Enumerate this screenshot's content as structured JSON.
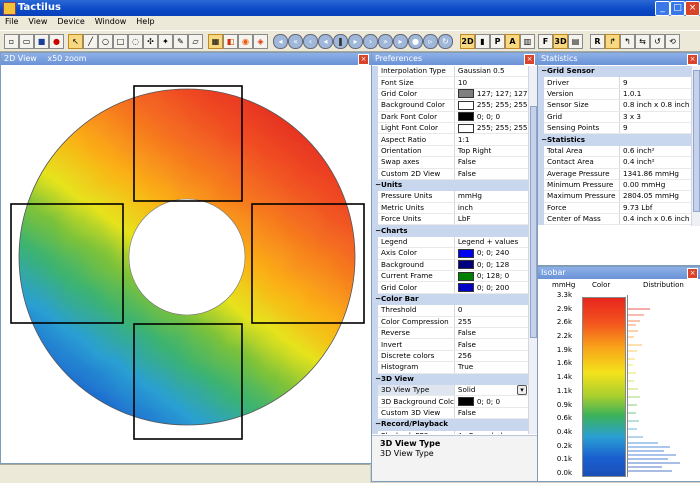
{
  "window": {
    "title": "Tactilus",
    "minimize": "_",
    "maximize": "□",
    "close": "×"
  },
  "menu": [
    "File",
    "View",
    "Device",
    "Window",
    "Help"
  ],
  "toolbar": {
    "btn_2d": "2D",
    "btn_3d": "3D",
    "btn_p": "P",
    "btn_a": "A",
    "btn_f": "F",
    "btn_r": "R"
  },
  "view2d": {
    "title": "2D View",
    "zoom": "x50 zoom"
  },
  "preferences": {
    "title": "Preferences",
    "rows": [
      {
        "name": "Interpolation Type",
        "value": "Gaussian 0.5"
      },
      {
        "name": "Font Size",
        "value": "10"
      },
      {
        "name": "Grid Color",
        "value": "127; 127; 127",
        "color": "#7f7f7f"
      },
      {
        "name": "Background Color",
        "value": "255; 255; 255",
        "color": "#ffffff"
      },
      {
        "name": "Dark Font Color",
        "value": "0; 0; 0",
        "color": "#000000"
      },
      {
        "name": "Light Font Color",
        "value": "255; 255; 255",
        "color": "#ffffff"
      },
      {
        "name": "Aspect Ratio",
        "value": "1:1"
      },
      {
        "name": "Orientation",
        "value": "Top Right"
      },
      {
        "name": "Swap axes",
        "value": "False"
      },
      {
        "name": "Custom 2D View",
        "value": "False"
      },
      {
        "category": "Units"
      },
      {
        "name": "Pressure Units",
        "value": "mmHg"
      },
      {
        "name": "Metric Units",
        "value": "inch"
      },
      {
        "name": "Force Units",
        "value": "LbF"
      },
      {
        "category": "Charts"
      },
      {
        "name": "Legend",
        "value": "Legend + values"
      },
      {
        "name": "Axis Color",
        "value": "0; 0; 240",
        "color": "#0000f0"
      },
      {
        "name": "Background",
        "value": "0; 0; 128",
        "color": "#000080"
      },
      {
        "name": "Current Frame",
        "value": "0; 128; 0",
        "color": "#008000"
      },
      {
        "name": "Grid Color",
        "value": "0; 0; 200",
        "color": "#0000c8"
      },
      {
        "category": "Color Bar"
      },
      {
        "name": "Threshold",
        "value": "0"
      },
      {
        "name": "Color Compression",
        "value": "255"
      },
      {
        "name": "Reverse",
        "value": "False"
      },
      {
        "name": "Invert",
        "value": "False"
      },
      {
        "name": "Discrete colors",
        "value": "256"
      },
      {
        "name": "Histogram",
        "value": "True"
      },
      {
        "category": "3D View"
      },
      {
        "name": "3D View Type",
        "value": "Solid",
        "dropdown": true
      },
      {
        "name": "3D Background Colc",
        "value": "0; 0; 0",
        "color": "#000000"
      },
      {
        "name": "Custom 3D View",
        "value": "False"
      },
      {
        "category": "Record/Playback"
      },
      {
        "name": "Playback FPS",
        "value": "As Recorded"
      }
    ],
    "desc_title": "3D View Type",
    "desc_text": "3D View Type"
  },
  "statistics": {
    "title": "Statistics",
    "rows": [
      {
        "category": "Grid Sensor"
      },
      {
        "name": "Driver",
        "value": "9"
      },
      {
        "name": "Version",
        "value": "1.0.1"
      },
      {
        "name": "Sensor Size",
        "value": "0.8 inch x 0.8 inch"
      },
      {
        "name": "Grid",
        "value": "3 x 3"
      },
      {
        "name": "Sensing Points",
        "value": "9"
      },
      {
        "category": "Statistics"
      },
      {
        "name": "Total Area",
        "value": "0.6 inch²"
      },
      {
        "name": "Contact Area",
        "value": "0.4 inch²"
      },
      {
        "name": "Average Pressure",
        "value": "1341.86 mmHg"
      },
      {
        "name": "Minimum Pressure",
        "value": "0.00 mmHg"
      },
      {
        "name": "Maximum Pressure",
        "value": "2804.05 mmHg"
      },
      {
        "name": "Force",
        "value": "9.73 Lbf"
      },
      {
        "name": "Center of Mass",
        "value": "0.4 inch x 0.6 inch"
      }
    ]
  },
  "isobar": {
    "title": "Isobar",
    "col_units": "mmHg",
    "col_color": "Color",
    "col_dist": "Distribution",
    "ticks": [
      "3.3k",
      "2.9k",
      "2.6k",
      "2.2k",
      "1.9k",
      "1.6k",
      "1.4k",
      "1.1k",
      "0.9k",
      "0.6k",
      "0.4k",
      "0.2k",
      "0.1k",
      "0.0k"
    ]
  }
}
